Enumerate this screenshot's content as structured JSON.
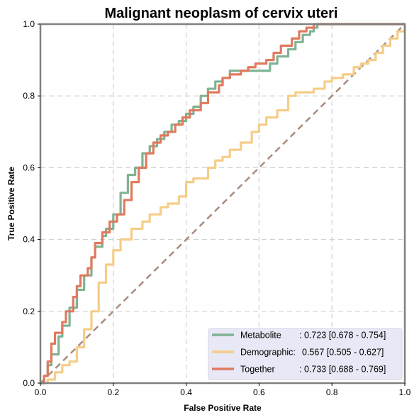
{
  "chart_data": {
    "type": "line",
    "title": "Malignant neoplasm of cervix uteri",
    "xlabel": "False Positive Rate",
    "ylabel": "True Positive Rate",
    "xlim": [
      0,
      1
    ],
    "ylim": [
      0,
      1
    ],
    "xticks": [
      "0.0",
      "0.2",
      "0.4",
      "0.6",
      "0.8",
      "1.0"
    ],
    "yticks": [
      "0.0",
      "0.2",
      "0.4",
      "0.6",
      "0.8",
      "1.0"
    ],
    "grid": true,
    "legend_position": "lower-right",
    "diagonal": {
      "x": [
        0,
        1
      ],
      "y": [
        0,
        1
      ],
      "color": "#a88c7e",
      "style": "dashed"
    },
    "series": [
      {
        "name": "Metabolite",
        "legend_name": "Metabolite",
        "legend_stat": ": 0.723 [0.678 - 0.754]",
        "color": "#7fb394",
        "x": [
          0.0,
          0.01,
          0.02,
          0.03,
          0.05,
          0.06,
          0.08,
          0.1,
          0.12,
          0.14,
          0.15,
          0.17,
          0.18,
          0.2,
          0.22,
          0.24,
          0.26,
          0.28,
          0.3,
          0.32,
          0.34,
          0.36,
          0.38,
          0.4,
          0.42,
          0.44,
          0.46,
          0.48,
          0.5,
          0.52,
          0.55,
          0.6,
          0.63,
          0.65,
          0.68,
          0.7,
          0.72,
          0.74,
          0.75,
          0.76,
          0.77,
          1.0
        ],
        "y": [
          0.0,
          0.02,
          0.05,
          0.08,
          0.13,
          0.16,
          0.21,
          0.26,
          0.3,
          0.35,
          0.38,
          0.41,
          0.43,
          0.47,
          0.53,
          0.58,
          0.6,
          0.64,
          0.66,
          0.68,
          0.7,
          0.72,
          0.73,
          0.75,
          0.77,
          0.8,
          0.82,
          0.84,
          0.85,
          0.87,
          0.87,
          0.87,
          0.89,
          0.91,
          0.93,
          0.95,
          0.97,
          0.98,
          0.99,
          1.0,
          1.0,
          1.0
        ]
      },
      {
        "name": "Demographic",
        "legend_name": "Demographic:",
        "legend_stat": "0.567 [0.505 - 0.627]",
        "color": "#f5cd88",
        "x": [
          0.0,
          0.02,
          0.04,
          0.06,
          0.08,
          0.1,
          0.12,
          0.14,
          0.16,
          0.18,
          0.2,
          0.22,
          0.25,
          0.28,
          0.3,
          0.33,
          0.35,
          0.38,
          0.4,
          0.42,
          0.44,
          0.46,
          0.48,
          0.5,
          0.52,
          0.55,
          0.58,
          0.6,
          0.62,
          0.65,
          0.68,
          0.7,
          0.72,
          0.75,
          0.78,
          0.8,
          0.83,
          0.86,
          0.88,
          0.9,
          0.92,
          0.94,
          0.96,
          0.98,
          1.0
        ],
        "y": [
          0.0,
          0.01,
          0.03,
          0.05,
          0.06,
          0.1,
          0.15,
          0.2,
          0.28,
          0.33,
          0.37,
          0.4,
          0.43,
          0.45,
          0.47,
          0.49,
          0.5,
          0.52,
          0.56,
          0.57,
          0.57,
          0.6,
          0.62,
          0.63,
          0.65,
          0.67,
          0.7,
          0.72,
          0.74,
          0.76,
          0.8,
          0.81,
          0.81,
          0.82,
          0.84,
          0.85,
          0.86,
          0.88,
          0.89,
          0.9,
          0.92,
          0.94,
          0.96,
          0.98,
          1.0
        ]
      },
      {
        "name": "Together",
        "legend_name": "Together",
        "legend_stat": ": 0.733 [0.688 - 0.769]",
        "color": "#e07a5f",
        "x": [
          0.0,
          0.01,
          0.02,
          0.03,
          0.04,
          0.06,
          0.07,
          0.09,
          0.1,
          0.11,
          0.13,
          0.14,
          0.15,
          0.17,
          0.19,
          0.21,
          0.23,
          0.25,
          0.27,
          0.29,
          0.31,
          0.33,
          0.35,
          0.37,
          0.39,
          0.41,
          0.44,
          0.46,
          0.49,
          0.5,
          0.52,
          0.55,
          0.57,
          0.59,
          0.62,
          0.64,
          0.66,
          0.69,
          0.71,
          0.73,
          0.75,
          1.0
        ],
        "y": [
          0.0,
          0.02,
          0.06,
          0.11,
          0.14,
          0.17,
          0.2,
          0.24,
          0.27,
          0.3,
          0.32,
          0.35,
          0.39,
          0.42,
          0.45,
          0.47,
          0.51,
          0.56,
          0.6,
          0.64,
          0.67,
          0.69,
          0.7,
          0.72,
          0.74,
          0.76,
          0.78,
          0.81,
          0.83,
          0.85,
          0.86,
          0.87,
          0.88,
          0.89,
          0.9,
          0.92,
          0.94,
          0.96,
          0.98,
          0.99,
          1.0,
          1.0
        ]
      }
    ]
  }
}
